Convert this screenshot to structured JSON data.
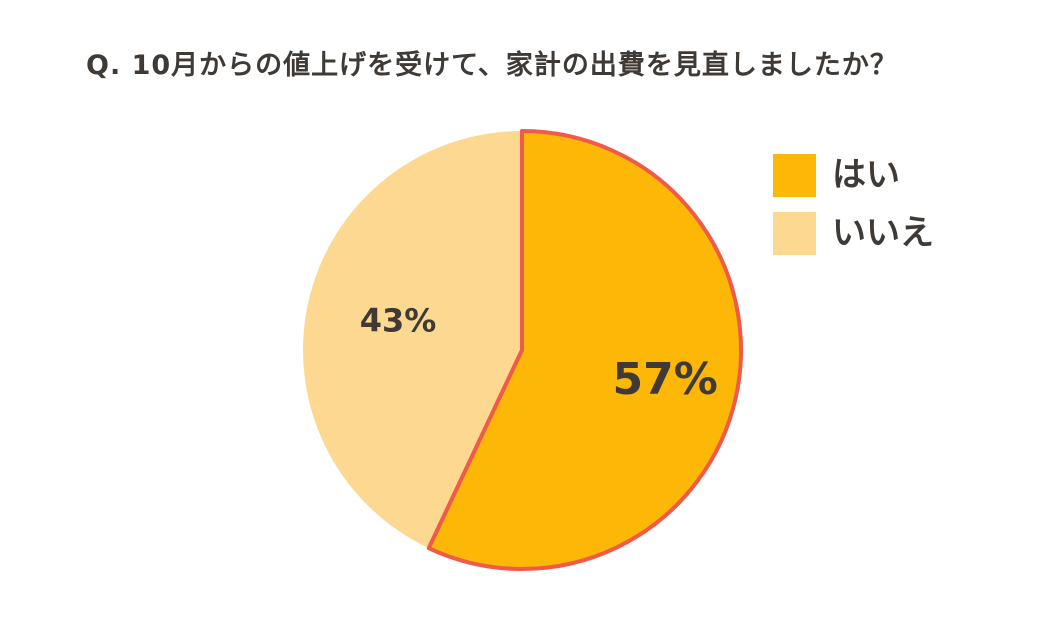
{
  "chart_data": {
    "type": "pie",
    "title": "Q. 10月からの値上げを受けて、家計の出費を見直しましたか？",
    "categories": [
      "はい",
      "いいえ"
    ],
    "values": [
      57,
      43
    ],
    "value_labels": [
      "57%",
      "43%"
    ],
    "colors": [
      "#FDB706",
      "#FCD890"
    ],
    "legend_placement": "top-right",
    "highlight_stroke_color": "#F05A4A"
  }
}
